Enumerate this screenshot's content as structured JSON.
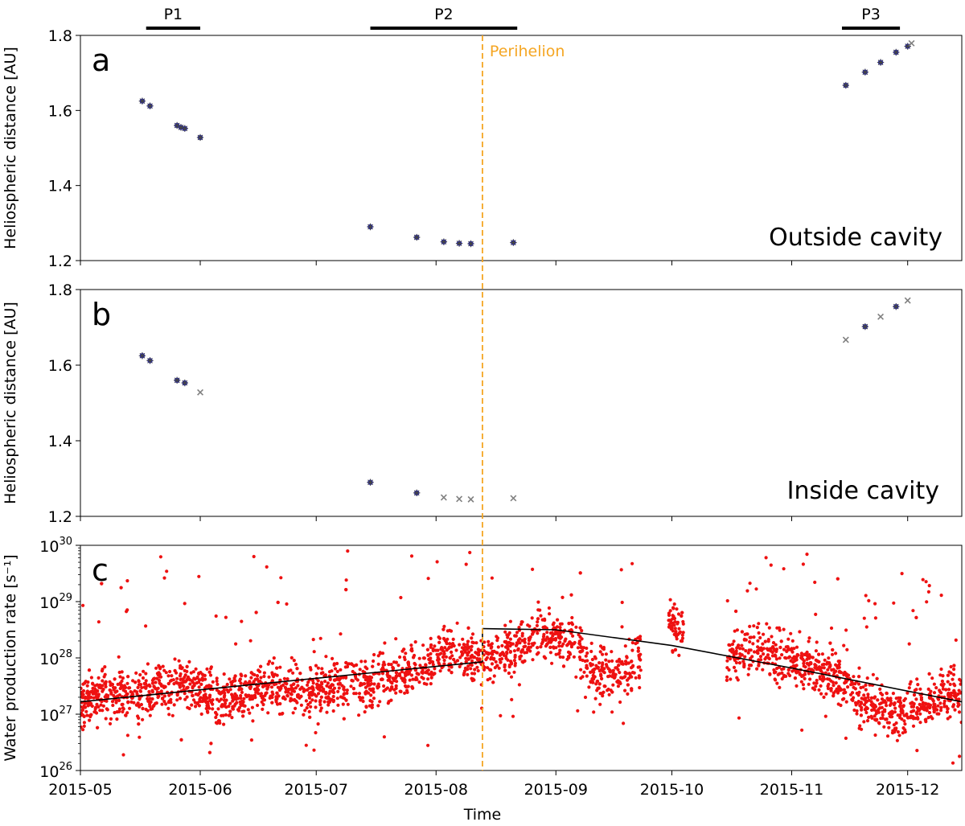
{
  "figure": {
    "xlabel": "Time",
    "x_ticks": [
      "2015-05",
      "2015-06",
      "2015-07",
      "2015-08",
      "2015-09",
      "2015-10",
      "2015-11",
      "2015-12"
    ],
    "periods": [
      {
        "label": "P1",
        "start": "2015-05-18",
        "end": "2015-06-01"
      },
      {
        "label": "P2",
        "start": "2015-07-15",
        "end": "2015-08-22"
      },
      {
        "label": "P3",
        "start": "2015-11-14",
        "end": "2015-11-29"
      }
    ],
    "perihelion": {
      "label": "Perihelion",
      "date": "2015-08-13",
      "color": "#f5a623"
    },
    "colors": {
      "blue": "#1f1fd1",
      "gray": "#808080",
      "red": "#ee1111",
      "fit": "#000000"
    }
  },
  "chart_data": [
    {
      "type": "scatter",
      "panel": "a",
      "annotation": "Outside cavity",
      "ylabel": "Heliospheric distance [AU]",
      "ylim": [
        1.2,
        1.8
      ],
      "y_ticks": [
        "1.2",
        "1.4",
        "1.6",
        "1.8"
      ],
      "series": [
        {
          "name": "observed",
          "marker": "blue-star",
          "x": [
            "2015-05-17",
            "2015-05-19",
            "2015-05-26",
            "2015-05-27",
            "2015-05-28",
            "2015-06-01",
            "2015-07-15",
            "2015-07-27",
            "2015-08-03",
            "2015-08-07",
            "2015-08-10",
            "2015-08-21",
            "2015-11-15",
            "2015-11-20",
            "2015-11-24",
            "2015-11-28",
            "2015-12-01"
          ],
          "y": [
            1.625,
            1.612,
            1.56,
            1.555,
            1.552,
            1.528,
            1.29,
            1.262,
            1.25,
            1.246,
            1.245,
            1.248,
            1.667,
            1.702,
            1.728,
            1.755,
            1.771
          ]
        },
        {
          "name": "no-detection",
          "marker": "gray-x",
          "x": [
            "2015-12-02"
          ],
          "y": [
            1.779
          ]
        }
      ]
    },
    {
      "type": "scatter",
      "panel": "b",
      "annotation": "Inside cavity",
      "ylabel": "Heliospheric distance [AU]",
      "ylim": [
        1.2,
        1.8
      ],
      "y_ticks": [
        "1.2",
        "1.4",
        "1.6",
        "1.8"
      ],
      "series": [
        {
          "name": "observed",
          "marker": "blue-star",
          "x": [
            "2015-05-17",
            "2015-05-19",
            "2015-05-26",
            "2015-05-28",
            "2015-07-15",
            "2015-07-27",
            "2015-11-20",
            "2015-11-28"
          ],
          "y": [
            1.625,
            1.612,
            1.56,
            1.553,
            1.29,
            1.262,
            1.702,
            1.755
          ]
        },
        {
          "name": "no-detection",
          "marker": "gray-x",
          "x": [
            "2015-06-01",
            "2015-08-03",
            "2015-08-07",
            "2015-08-10",
            "2015-08-21",
            "2015-11-15",
            "2015-11-24",
            "2015-12-01"
          ],
          "y": [
            1.528,
            1.25,
            1.246,
            1.245,
            1.248,
            1.667,
            1.728,
            1.771
          ]
        }
      ]
    },
    {
      "type": "scatter",
      "panel": "c",
      "ylabel": "Water production rate [s⁻¹]",
      "yscale": "log",
      "ylim": [
        1e+26,
        1e+30
      ],
      "y_tick_base": "10",
      "y_tick_exps": [
        "26",
        "27",
        "28",
        "29",
        "30"
      ],
      "xlim": [
        "2015-05-01",
        "2015-12-15"
      ],
      "series": [
        {
          "name": "water production rate",
          "marker": "red-dot",
          "envelope": [
            [
              "2015-05-01",
              27.25
            ],
            [
              "2015-05-15",
              27.35
            ],
            [
              "2015-05-28",
              27.6
            ],
            [
              "2015-06-05",
              27.3
            ],
            [
              "2015-06-20",
              27.45
            ],
            [
              "2015-07-05",
              27.5
            ],
            [
              "2015-07-15",
              27.55
            ],
            [
              "2015-07-25",
              27.75
            ],
            [
              "2015-08-05",
              28.1
            ],
            [
              "2015-08-12",
              27.95
            ],
            [
              "2015-08-13",
              27.95
            ],
            [
              "2015-08-20",
              28.1
            ],
            [
              "2015-08-28",
              28.45
            ],
            [
              "2015-09-05",
              28.25
            ],
            [
              "2015-09-12",
              27.75
            ],
            [
              "2015-09-18",
              27.7
            ],
            [
              "2015-10-01",
              28.7
            ],
            [
              "2015-10-03",
              28.5
            ],
            [
              "2015-10-15",
              28.0
            ],
            [
              "2015-10-22",
              28.2
            ],
            [
              "2015-11-01",
              27.9
            ],
            [
              "2015-11-12",
              27.7
            ],
            [
              "2015-11-20",
              27.2
            ],
            [
              "2015-11-28",
              27.0
            ],
            [
              "2015-12-05",
              27.2
            ],
            [
              "2015-12-15",
              27.4
            ]
          ],
          "gaps": [
            [
              "2015-09-23",
              "2015-09-30"
            ],
            [
              "2015-10-04",
              "2015-10-15"
            ]
          ]
        },
        {
          "name": "fit",
          "marker": "line",
          "segments": [
            {
              "x": [
                "2015-05-01",
                "2015-06-15",
                "2015-08-13"
              ],
              "log10_y": [
                27.22,
                27.53,
                27.93
              ]
            },
            {
              "x": [
                "2015-08-13",
                "2015-09-01",
                "2015-10-01",
                "2015-11-01",
                "2015-12-15"
              ],
              "log10_y": [
                28.52,
                28.5,
                28.22,
                27.82,
                27.22
              ]
            }
          ]
        }
      ]
    }
  ]
}
